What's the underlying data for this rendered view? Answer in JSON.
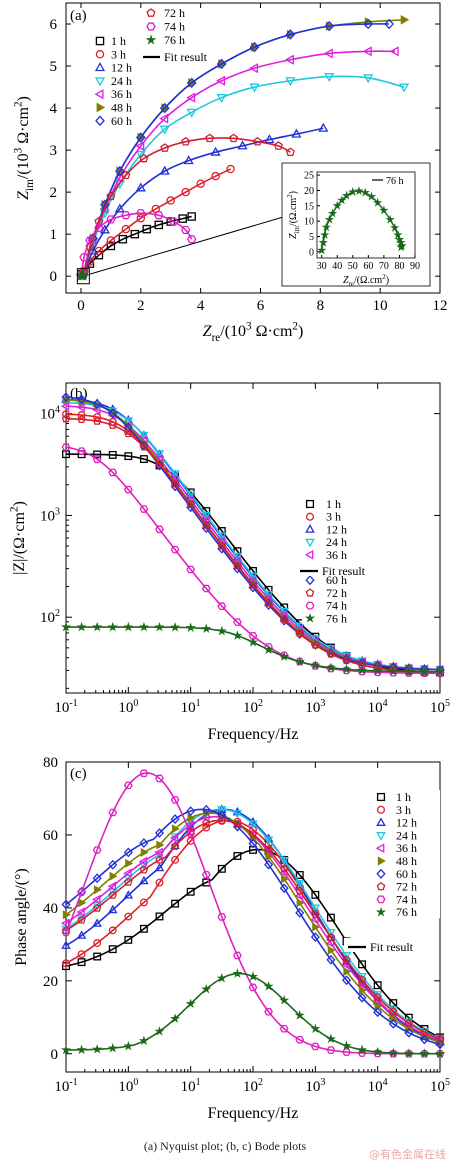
{
  "caption": "(a)  Nyquist  plot; (b, c) Bode plots",
  "watermark": "@有色金属在线",
  "series_meta": [
    {
      "name": "1 h",
      "color": "#000000",
      "marker": "square"
    },
    {
      "name": "3 h",
      "color": "#e0202a",
      "marker": "circle"
    },
    {
      "name": "12 h",
      "color": "#2030d8",
      "marker": "triangle-up"
    },
    {
      "name": "24 h",
      "color": "#20c8e0",
      "marker": "triangle-down"
    },
    {
      "name": "36 h",
      "color": "#e020e0",
      "marker": "triangle-left"
    },
    {
      "name": "48 h",
      "color": "#808000",
      "marker": "triangle-right"
    },
    {
      "name": "60 h",
      "color": "#2030d8",
      "marker": "diamond"
    },
    {
      "name": "72 h",
      "color": "#d02030",
      "marker": "pentagon"
    },
    {
      "name": "74 h",
      "color": "#e020c0",
      "marker": "hexagon"
    },
    {
      "name": "76 h",
      "color": "#1a6a1a",
      "marker": "star"
    }
  ],
  "fit_label": "Fit result",
  "chart_data": [
    {
      "id": "a",
      "panel_label": "(a)",
      "type": "scatter",
      "xlabel_parts": [
        "Z",
        "re",
        "/(10",
        "3",
        " Ω·cm",
        "2",
        ")"
      ],
      "ylabel_parts": [
        "Z",
        "im",
        "/(10",
        "3",
        " Ω·cm",
        "2",
        ")"
      ],
      "xlim": [
        -0.5,
        12
      ],
      "ylim": [
        -0.4,
        6.5
      ],
      "xticks": [
        0,
        2,
        4,
        6,
        8,
        10,
        12
      ],
      "yticks": [
        0,
        1,
        2,
        3,
        4,
        5,
        6
      ],
      "series": [
        {
          "name": "1 h",
          "x": [
            0.05,
            0.3,
            0.6,
            1.0,
            1.4,
            1.8,
            2.2,
            2.6,
            3.0,
            3.4,
            3.7
          ],
          "y": [
            0.05,
            0.3,
            0.5,
            0.72,
            0.88,
            1.0,
            1.12,
            1.22,
            1.3,
            1.37,
            1.42
          ]
        },
        {
          "name": "3 h",
          "x": [
            0.05,
            0.3,
            0.6,
            1.0,
            1.5,
            2.0,
            2.5,
            3.0,
            3.5,
            4.0,
            4.5,
            5.0
          ],
          "y": [
            0.05,
            0.35,
            0.6,
            0.85,
            1.12,
            1.38,
            1.6,
            1.8,
            2.0,
            2.2,
            2.38,
            2.55
          ]
        },
        {
          "name": "12 h",
          "x": [
            0.1,
            0.4,
            0.8,
            1.3,
            2.0,
            2.8,
            3.6,
            4.5,
            5.4,
            6.3,
            7.2,
            8.1
          ],
          "y": [
            0.1,
            0.6,
            1.1,
            1.6,
            2.1,
            2.5,
            2.75,
            2.95,
            3.1,
            3.25,
            3.38,
            3.52
          ]
        },
        {
          "name": "24 h",
          "x": [
            0.1,
            0.4,
            0.8,
            1.3,
            2.0,
            2.8,
            3.7,
            4.7,
            5.8,
            7.0,
            8.3,
            9.6,
            10.8
          ],
          "y": [
            0.1,
            0.8,
            1.5,
            2.2,
            2.9,
            3.5,
            3.9,
            4.25,
            4.5,
            4.65,
            4.75,
            4.72,
            4.5
          ]
        },
        {
          "name": "36 h",
          "x": [
            0.1,
            0.4,
            0.8,
            1.3,
            2.0,
            2.8,
            3.7,
            4.7,
            5.8,
            7.0,
            8.3,
            9.6,
            10.5
          ],
          "y": [
            0.1,
            0.85,
            1.6,
            2.35,
            3.1,
            3.75,
            4.25,
            4.65,
            4.95,
            5.15,
            5.3,
            5.35,
            5.35
          ]
        },
        {
          "name": "48 h",
          "x": [
            0.1,
            0.4,
            0.8,
            1.3,
            2.0,
            2.8,
            3.7,
            4.7,
            5.8,
            7.0,
            8.3,
            9.6,
            10.8
          ],
          "y": [
            0.1,
            0.9,
            1.7,
            2.5,
            3.3,
            4.0,
            4.6,
            5.05,
            5.45,
            5.75,
            5.95,
            6.05,
            6.1
          ]
        },
        {
          "name": "60 h",
          "x": [
            0.1,
            0.4,
            0.8,
            1.3,
            2.0,
            2.8,
            3.7,
            4.7,
            5.8,
            7.0,
            8.3,
            9.6,
            10.3
          ],
          "y": [
            0.1,
            0.9,
            1.7,
            2.5,
            3.3,
            4.0,
            4.6,
            5.05,
            5.45,
            5.75,
            5.95,
            6.0,
            6.0
          ]
        },
        {
          "name": "72 h",
          "x": [
            0.1,
            0.3,
            0.6,
            1.0,
            1.5,
            2.1,
            2.8,
            3.5,
            4.3,
            5.1,
            5.9,
            6.6,
            7.0
          ],
          "y": [
            0.1,
            0.7,
            1.3,
            1.9,
            2.4,
            2.8,
            3.05,
            3.2,
            3.28,
            3.28,
            3.2,
            3.1,
            2.95
          ]
        },
        {
          "name": "74 h",
          "x": [
            0.02,
            0.1,
            0.3,
            0.6,
            1.0,
            1.5,
            2.0,
            2.6,
            3.1,
            3.5,
            3.7
          ],
          "y": [
            0.02,
            0.45,
            0.85,
            1.15,
            1.35,
            1.45,
            1.5,
            1.45,
            1.3,
            1.1,
            0.88
          ]
        },
        {
          "name": "76 h",
          "x": [
            0.0,
            0.01,
            0.02,
            0.04,
            0.06,
            0.07,
            0.08
          ],
          "y": [
            0.0,
            0.008,
            0.015,
            0.02,
            0.015,
            0.008,
            0.003
          ]
        }
      ],
      "inset": {
        "xlim": [
          27,
          90
        ],
        "ylim": [
          -2,
          26
        ],
        "xticks": [
          30,
          40,
          50,
          60,
          70,
          80,
          90
        ],
        "yticks": [
          0,
          5,
          10,
          15,
          20,
          25
        ],
        "xlabel_parts": [
          "Z",
          "re",
          "/(Ω.cm",
          "2",
          ")"
        ],
        "ylabel_parts": [
          "Z",
          "im",
          "/(Ω.cm",
          "2",
          ")"
        ],
        "legend": "76 h",
        "series": {
          "name": "76 h",
          "x": [
            30,
            31,
            32,
            33,
            35,
            37,
            40,
            43,
            46,
            50,
            54,
            58,
            62,
            66,
            70,
            74,
            77,
            79,
            80,
            81,
            81.5,
            81
          ],
          "y": [
            0.5,
            3,
            5.5,
            8,
            10.5,
            12.5,
            15,
            16.8,
            18.3,
            19.5,
            19.8,
            19.3,
            18,
            16,
            13.5,
            10.5,
            7.8,
            5.5,
            4,
            3,
            2,
            1.5
          ]
        }
      }
    },
    {
      "id": "b",
      "panel_label": "(b)",
      "type": "line",
      "xlabel": "Frequency/Hz",
      "ylabel_parts": [
        "|Z|/(Ω·cm",
        "2",
        ")"
      ],
      "xscale": "log",
      "yscale": "log",
      "xlim": [
        0.1,
        100000
      ],
      "ylim": [
        18,
        20000
      ],
      "xtick_labels": [
        [
          "10",
          "-1"
        ],
        [
          "10",
          "0"
        ],
        [
          "10",
          "1"
        ],
        [
          "10",
          "2"
        ],
        [
          "10",
          "3"
        ],
        [
          "10",
          "4"
        ],
        [
          "10",
          "5"
        ]
      ],
      "ytick_labels": [
        [
          "10",
          "2"
        ],
        [
          "10",
          "3"
        ],
        [
          "10",
          "4"
        ]
      ],
      "series": [
        {
          "name": "1 h",
          "R0": 4000,
          "Rs": 28,
          "fc": 4
        },
        {
          "name": "3 h",
          "R0": 10000,
          "Rs": 28,
          "fc": 0.9
        },
        {
          "name": "12 h",
          "R0": 14000,
          "Rs": 30,
          "fc": 0.75
        },
        {
          "name": "24 h",
          "R0": 13000,
          "Rs": 30,
          "fc": 0.85
        },
        {
          "name": "36 h",
          "R0": 12000,
          "Rs": 30,
          "fc": 0.8
        },
        {
          "name": "48 h",
          "R0": 14000,
          "Rs": 30,
          "fc": 0.6
        },
        {
          "name": "60 h",
          "R0": 15000,
          "Rs": 30,
          "fc": 0.5
        },
        {
          "name": "72 h",
          "R0": 9000,
          "Rs": 28,
          "fc": 1.0
        },
        {
          "name": "74 h",
          "R0": 5000,
          "Rs": 28,
          "fc": 0.32
        },
        {
          "name": "76 h",
          "R0": 80,
          "Rs": 29,
          "fc": 60
        }
      ]
    },
    {
      "id": "c",
      "panel_label": "(c)",
      "type": "line",
      "xlabel": "Frequency/Hz",
      "ylabel": "Phase angle/(°)",
      "xscale": "log",
      "xlim": [
        0.1,
        100000
      ],
      "ylim": [
        -5,
        80
      ],
      "yticks": [
        0,
        20,
        40,
        60,
        80
      ],
      "xtick_labels": [
        [
          "10",
          "-1"
        ],
        [
          "10",
          "0"
        ],
        [
          "10",
          "1"
        ],
        [
          "10",
          "2"
        ],
        [
          "10",
          "3"
        ],
        [
          "10",
          "4"
        ],
        [
          "10",
          "5"
        ]
      ],
      "series": [
        {
          "name": "1 h",
          "peak": 56,
          "fpeak": 120,
          "base": 22,
          "w": 1.3
        },
        {
          "name": "3 h",
          "peak": 64,
          "fpeak": 40,
          "base": 18,
          "w": 1.4
        },
        {
          "name": "12 h",
          "peak": 67,
          "fpeak": 35,
          "base": 22,
          "w": 1.4
        },
        {
          "name": "24 h",
          "peak": 67,
          "fpeak": 30,
          "base": 24,
          "w": 1.5
        },
        {
          "name": "36 h",
          "peak": 65,
          "fpeak": 25,
          "base": 25,
          "w": 1.5
        },
        {
          "name": "48 h",
          "peak": 66,
          "fpeak": 20,
          "base": 26,
          "w": 1.5
        },
        {
          "name": "60 h",
          "peak": 67,
          "fpeak": 15,
          "base": 27,
          "w": 1.5
        },
        {
          "name": "72 h",
          "peak": 64,
          "fpeak": 30,
          "base": 24,
          "w": 1.5
        },
        {
          "name": "74 h",
          "peak": 77,
          "fpeak": 2,
          "base": 14,
          "w": 1.0
        },
        {
          "name": "76 h",
          "peak": 22,
          "fpeak": 60,
          "base": 1,
          "w": 0.8
        }
      ]
    }
  ]
}
